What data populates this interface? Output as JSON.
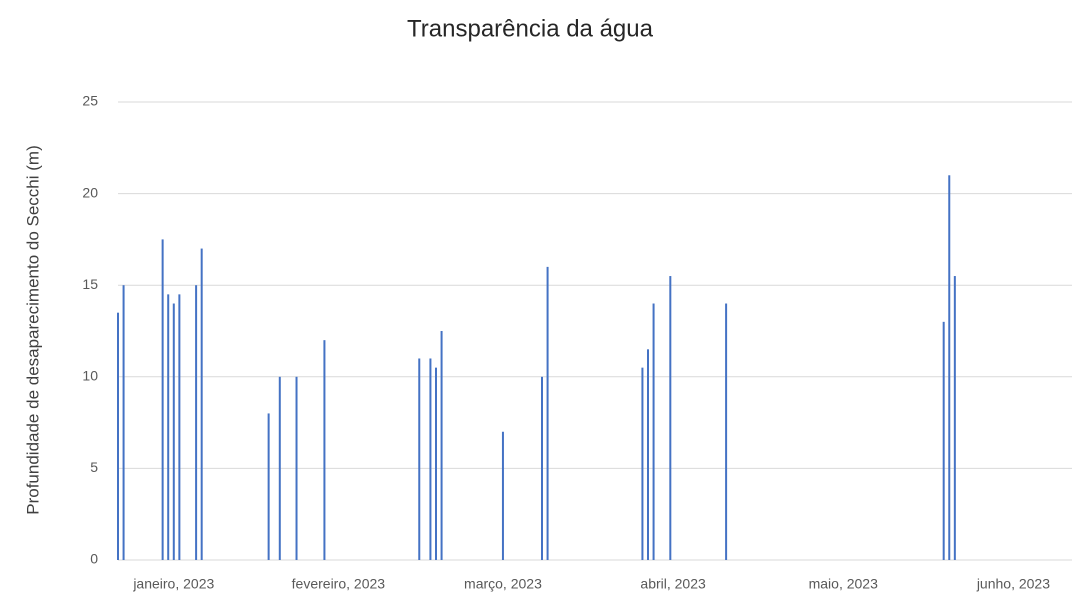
{
  "chart_data": {
    "type": "bar",
    "title": "Transparência da água",
    "y_label": "Profundidade de desaparecimento do Secchi (m)",
    "color": "#4472c4",
    "grid": true,
    "x": [
      6,
      7,
      14,
      15,
      16,
      17,
      20,
      21,
      33,
      35,
      38,
      43,
      60,
      62,
      63,
      64,
      75,
      82,
      83,
      100,
      101,
      102,
      105,
      115,
      154,
      155,
      156
    ],
    "values": [
      13.5,
      15,
      17.5,
      14.5,
      14,
      14.5,
      15,
      17,
      8,
      10,
      10,
      12,
      11,
      11,
      10.5,
      12.5,
      7,
      10,
      16,
      10.5,
      11.5,
      14,
      15.5,
      14,
      13,
      21,
      15.5
    ],
    "xlim": [
      6,
      177
    ],
    "xticks": [
      {
        "value": 16,
        "label": "janeiro, 2023"
      },
      {
        "value": 45.5,
        "label": "fevereiro, 2023"
      },
      {
        "value": 75,
        "label": "março, 2023"
      },
      {
        "value": 105.5,
        "label": "abril, 2023"
      },
      {
        "value": 136,
        "label": "maio, 2023"
      },
      {
        "value": 166.5,
        "label": "junho, 2023"
      }
    ],
    "ylim": [
      0,
      25
    ],
    "yticks": [
      0,
      5,
      10,
      15,
      20,
      25
    ]
  }
}
